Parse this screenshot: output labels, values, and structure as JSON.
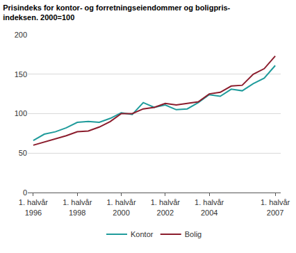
{
  "chart_data": {
    "type": "line",
    "title": "Prisindeks for kontor- og forretningseiendommer og boligpris-\nindeksen. 2000=100",
    "categories": [
      "1. halvår 1996",
      null,
      null,
      null,
      "1. halvår 1998",
      null,
      null,
      null,
      "1. halvår 2000",
      null,
      null,
      null,
      "1. halvår 2002",
      null,
      null,
      null,
      "1. halvår 2004",
      null,
      null,
      null,
      null,
      null,
      "1. halvår 2007"
    ],
    "series": [
      {
        "name": "Kontor",
        "color": "#1f9b9b",
        "values": [
          66,
          74,
          77,
          82,
          89,
          90,
          89,
          94,
          101,
          99,
          114,
          108,
          111,
          105,
          106,
          114,
          124,
          122,
          131,
          129,
          138,
          145,
          161
        ]
      },
      {
        "name": "Bolig",
        "color": "#8b1c2c",
        "values": [
          60,
          64,
          68,
          72,
          77,
          78,
          83,
          90,
          100,
          100,
          106,
          108,
          113,
          111,
          113,
          115,
          125,
          127,
          135,
          136,
          150,
          157,
          173
        ]
      }
    ],
    "ylim": [
      0,
      200
    ],
    "yticks": [
      0,
      50,
      100,
      150,
      200
    ],
    "grid": true,
    "legend": "bottom"
  }
}
